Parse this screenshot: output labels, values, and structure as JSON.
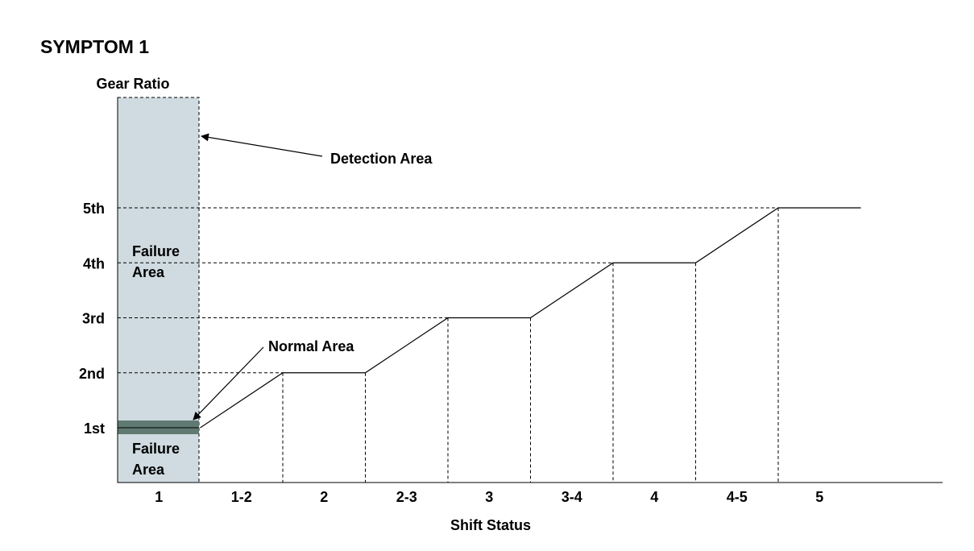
{
  "title": "SYMPTOM 1",
  "y_axis_label": "Gear Ratio",
  "x_axis_label": "Shift Status",
  "annotations": {
    "detection_area": "Detection Area",
    "normal_area": "Normal Area",
    "failure_area_upper": [
      "Failure",
      "Area"
    ],
    "failure_area_lower": [
      "Failure",
      "Area"
    ]
  },
  "colors": {
    "detection_fill": "#cfdbe0",
    "normal_band": "#5f7a72",
    "line": "#000000"
  },
  "chart_data": {
    "type": "line",
    "y_levels": [
      "1st",
      "2nd",
      "3rd",
      "4th",
      "5th"
    ],
    "x_categories": [
      "1",
      "1-2",
      "2",
      "2-3",
      "3",
      "3-4",
      "4",
      "4-5",
      "5"
    ],
    "series": [
      {
        "values": [
          1,
          1.5,
          2,
          2.5,
          3,
          3.5,
          4,
          4.5,
          5
        ]
      }
    ]
  }
}
